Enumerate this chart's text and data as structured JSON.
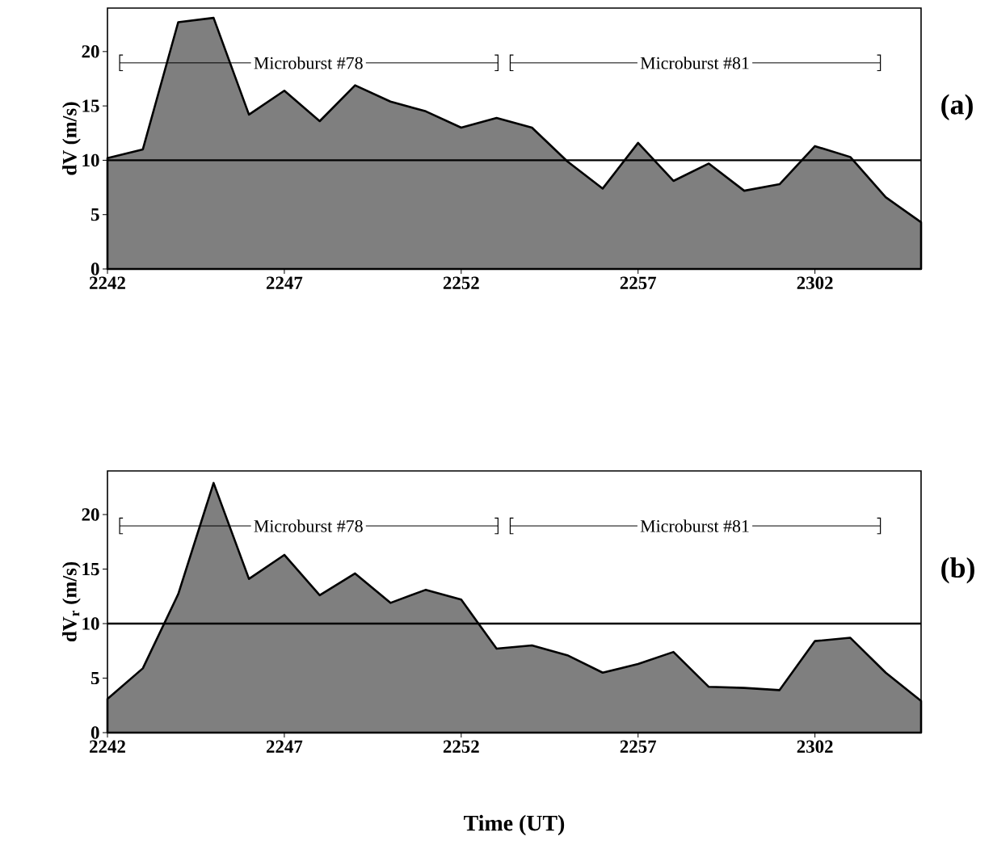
{
  "chart_data": [
    {
      "type": "area",
      "ylabel": "dV (m/s)",
      "categories": [
        "2242",
        null,
        null,
        null,
        null,
        "2247",
        null,
        null,
        null,
        null,
        "2252",
        null,
        null,
        null,
        null,
        "2257",
        null,
        null,
        null,
        null,
        "2302",
        null,
        null,
        null
      ],
      "values": [
        10.2,
        11.0,
        22.7,
        23.1,
        14.2,
        16.4,
        13.6,
        16.9,
        15.4,
        14.5,
        13.0,
        13.9,
        13.0,
        9.9,
        7.4,
        11.6,
        8.1,
        9.7,
        7.2,
        7.8,
        11.3,
        10.3,
        6.6,
        4.3
      ],
      "color": "#7f7f7f",
      "ylim": [
        0,
        24
      ],
      "yticks": [
        0,
        5,
        10,
        15,
        20
      ],
      "ref_lines": [
        {
          "axis": "y",
          "value": 10
        }
      ],
      "annotations": [
        "Microburst #78",
        "Microburst #81",
        "(a)"
      ]
    },
    {
      "type": "area",
      "ylabel": "dV$_{r}$ (m/s)",
      "xlabel": "Time (UT)",
      "categories": [
        "2242",
        null,
        null,
        null,
        null,
        "2247",
        null,
        null,
        null,
        null,
        "2252",
        null,
        null,
        null,
        null,
        "2257",
        null,
        null,
        null,
        null,
        "2302",
        null,
        null,
        null
      ],
      "values": [
        3.1,
        5.9,
        12.7,
        22.9,
        14.1,
        16.3,
        12.6,
        14.6,
        11.9,
        13.1,
        12.2,
        7.7,
        8.0,
        7.1,
        5.5,
        6.3,
        7.4,
        4.2,
        4.1,
        3.9,
        8.4,
        8.7,
        5.5,
        2.9
      ],
      "color": "#7f7f7f",
      "ylim": [
        0,
        24
      ],
      "yticks": [
        0,
        5,
        10,
        15,
        20
      ],
      "ref_lines": [
        {
          "axis": "y",
          "value": 10
        }
      ],
      "annotations": [
        "Microburst #78",
        "Microburst #81",
        "(b)"
      ]
    }
  ]
}
